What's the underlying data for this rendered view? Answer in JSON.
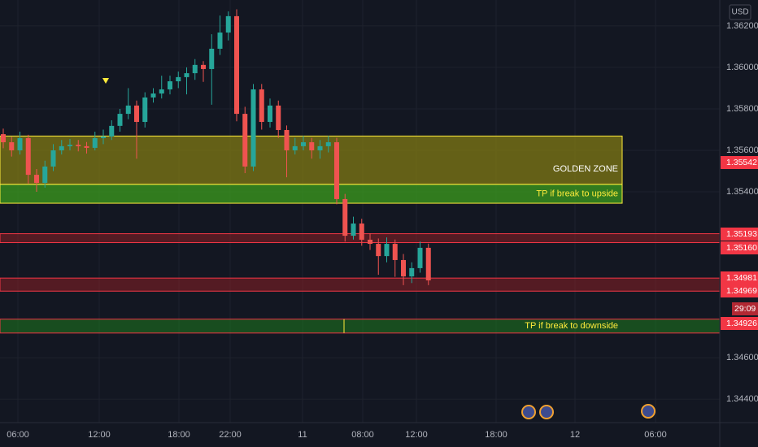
{
  "chart_data": {
    "type": "candlestick",
    "currency": "USD",
    "countdown": "29:09",
    "up_color": "#26a69a",
    "down_color": "#ef5350",
    "grid": true,
    "ylim": [
      1.34287,
      1.36325
    ],
    "yticks": [
      {
        "value": 1.362,
        "label": "1.36200"
      },
      {
        "value": 1.36,
        "label": "1.36000"
      },
      {
        "value": 1.358,
        "label": "1.35800"
      },
      {
        "value": 1.356,
        "label": "1.35600"
      },
      {
        "value": 1.354,
        "label": "1.35400"
      },
      {
        "value": 1.346,
        "label": "1.34600"
      },
      {
        "value": 1.344,
        "label": "1.34400"
      }
    ],
    "time_labels": [
      "06:00",
      "12:00",
      "18:00",
      "22:00",
      "11",
      "08:00",
      "12:00",
      "18:00",
      "12",
      "06:00"
    ],
    "candles": [
      [
        1.35678,
        1.35705,
        1.3561,
        1.35639
      ],
      [
        1.35639,
        1.35665,
        1.3557,
        1.356
      ],
      [
        1.356,
        1.3569,
        1.3558,
        1.35659
      ],
      [
        1.35659,
        1.35675,
        1.3544,
        1.35482
      ],
      [
        1.35482,
        1.3551,
        1.354,
        1.35443
      ],
      [
        1.35443,
        1.3555,
        1.3542,
        1.35522
      ],
      [
        1.35522,
        1.3563,
        1.355,
        1.356
      ],
      [
        1.356,
        1.3565,
        1.3558,
        1.3562
      ],
      [
        1.3562,
        1.35655,
        1.356,
        1.35627
      ],
      [
        1.35627,
        1.3565,
        1.35595,
        1.3562
      ],
      [
        1.3562,
        1.3564,
        1.35585,
        1.35612
      ],
      [
        1.35612,
        1.3569,
        1.356,
        1.35659
      ],
      [
        1.35659,
        1.357,
        1.3563,
        1.35667
      ],
      [
        1.35667,
        1.35745,
        1.3565,
        1.35718
      ],
      [
        1.35718,
        1.358,
        1.3569,
        1.35776
      ],
      [
        1.35776,
        1.359,
        1.3575,
        1.35816
      ],
      [
        1.35816,
        1.3584,
        1.3556,
        1.35737
      ],
      [
        1.35737,
        1.3588,
        1.3571,
        1.35855
      ],
      [
        1.35855,
        1.359,
        1.3583,
        1.35874
      ],
      [
        1.35874,
        1.3596,
        1.3585,
        1.35894
      ],
      [
        1.35894,
        1.3596,
        1.3587,
        1.35933
      ],
      [
        1.35933,
        1.3598,
        1.359,
        1.35953
      ],
      [
        1.35953,
        1.36,
        1.3587,
        1.35972
      ],
      [
        1.35972,
        1.3604,
        1.3594,
        1.36012
      ],
      [
        1.36012,
        1.3603,
        1.3593,
        1.35992
      ],
      [
        1.35992,
        1.3616,
        1.3582,
        1.3609
      ],
      [
        1.3609,
        1.3625,
        1.3606,
        1.36168
      ],
      [
        1.36168,
        1.3627,
        1.3613,
        1.36247
      ],
      [
        1.36247,
        1.3628,
        1.3574,
        1.35776
      ],
      [
        1.35776,
        1.3581,
        1.3549,
        1.35522
      ],
      [
        1.35522,
        1.3592,
        1.355,
        1.35894
      ],
      [
        1.35894,
        1.3592,
        1.357,
        1.35737
      ],
      [
        1.35737,
        1.3585,
        1.3571,
        1.35816
      ],
      [
        1.35816,
        1.3584,
        1.3566,
        1.35698
      ],
      [
        1.35698,
        1.3572,
        1.3547,
        1.356
      ],
      [
        1.356,
        1.3566,
        1.3558,
        1.3562
      ],
      [
        1.3562,
        1.3567,
        1.356,
        1.35639
      ],
      [
        1.35639,
        1.3566,
        1.3556,
        1.356
      ],
      [
        1.356,
        1.3565,
        1.3556,
        1.3562
      ],
      [
        1.3562,
        1.3567,
        1.3559,
        1.35639
      ],
      [
        1.35639,
        1.3566,
        1.3534,
        1.35365
      ],
      [
        1.35365,
        1.3539,
        1.3516,
        1.35188
      ],
      [
        1.35188,
        1.3528,
        1.3517,
        1.35247
      ],
      [
        1.35247,
        1.3527,
        1.3514,
        1.35169
      ],
      [
        1.35169,
        1.352,
        1.3512,
        1.35149
      ],
      [
        1.35149,
        1.35175,
        1.35,
        1.3509
      ],
      [
        1.3509,
        1.3518,
        1.3506,
        1.35149
      ],
      [
        1.35149,
        1.3517,
        1.3499,
        1.35071
      ],
      [
        1.35071,
        1.351,
        1.3495,
        1.34992
      ],
      [
        1.34992,
        1.3506,
        1.3496,
        1.35032
      ],
      [
        1.35032,
        1.3516,
        1.3501,
        1.3513
      ],
      [
        1.3513,
        1.3515,
        1.3495,
        1.34973
      ]
    ],
    "zones": [
      {
        "name": "GOLDEN ZONE",
        "top": 1.35669,
        "bottom": 1.35436,
        "color": "#807a14"
      },
      {
        "name": "TP if break to upside",
        "top": 1.35436,
        "bottom": 1.35345,
        "color": "#3c9d1e"
      },
      {
        "top": 1.35198,
        "bottom": 1.35155,
        "color": "#8a1f24"
      },
      {
        "top": 1.34984,
        "bottom": 1.34921,
        "color": "#8a1f24"
      },
      {
        "name": "TP if break to downside",
        "top": 1.34786,
        "bottom": 1.34719,
        "color": "#1d7a1d"
      }
    ],
    "price_labels": [
      {
        "value": 1.35542,
        "label": "1.35542",
        "color": "#f23645"
      },
      {
        "value": 1.35193,
        "label": "1.35193",
        "color": "#f23645"
      },
      {
        "value": 1.3516,
        "label": "1.35160",
        "color": "#f23645"
      },
      {
        "value": 1.34981,
        "label": "1.34981",
        "color": "#f23645"
      },
      {
        "value": 1.34969,
        "label": "1.34969",
        "color": "#f23645"
      },
      {
        "value": 1.34926,
        "label": "1.34926",
        "color": "#f23645"
      }
    ]
  }
}
